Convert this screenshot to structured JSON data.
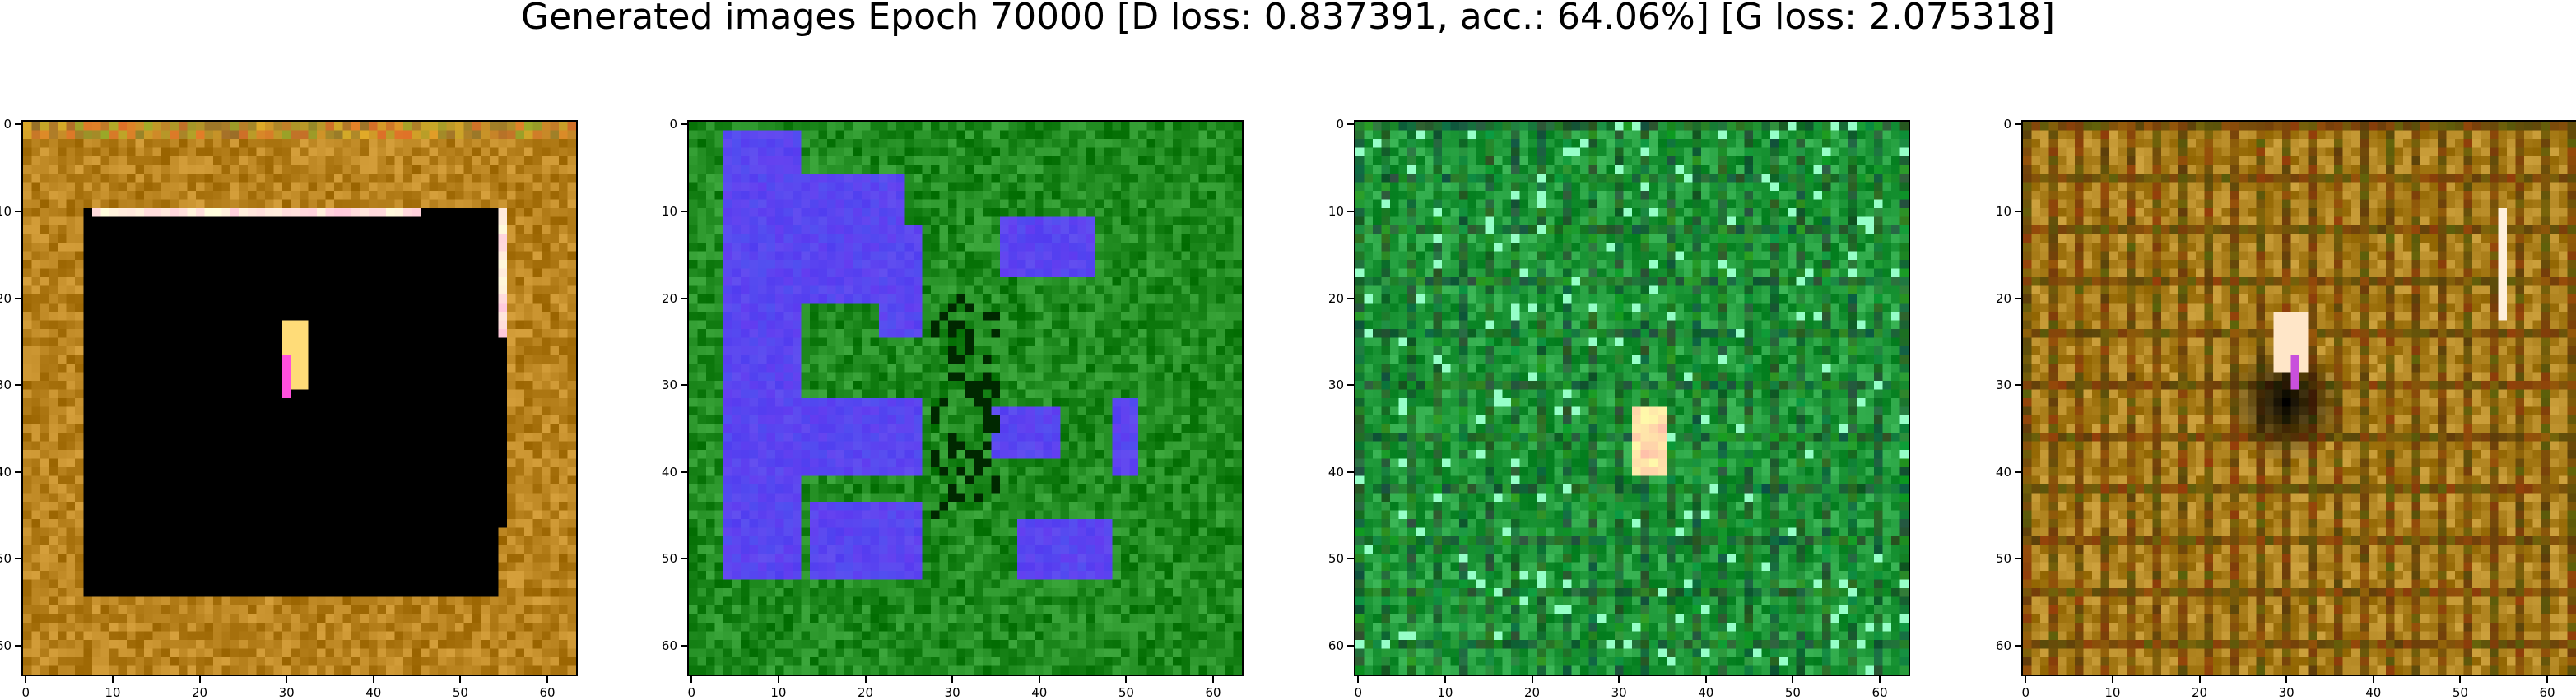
{
  "title": "Generated images Epoch 70000 [D loss: 0.837391, acc.: 64.06%] [G loss: 2.075318]",
  "axes": {
    "xticks": [
      "0",
      "10",
      "20",
      "30",
      "40",
      "50",
      "60"
    ],
    "yticks": [
      "0",
      "10",
      "20",
      "30",
      "40",
      "50",
      "60"
    ],
    "xlim": [
      -0.5,
      63.5
    ],
    "ylim": [
      63.5,
      -0.5
    ]
  },
  "panels": [
    {
      "id": "panel-1",
      "theme": "dark-square-on-ochre",
      "base_color": "#b8821e",
      "accent_color": "#000000"
    },
    {
      "id": "panel-2",
      "theme": "blue-blobs-on-green",
      "base_color": "#1f8a1f",
      "accent_color": "#5a3cff"
    },
    {
      "id": "panel-3",
      "theme": "grid-on-green",
      "base_color": "#1f9a3a",
      "accent_color": "#6fe0b0"
    },
    {
      "id": "panel-4",
      "theme": "grid-on-ochre",
      "base_color": "#b08420",
      "accent_color": "#3a2208"
    }
  ]
}
